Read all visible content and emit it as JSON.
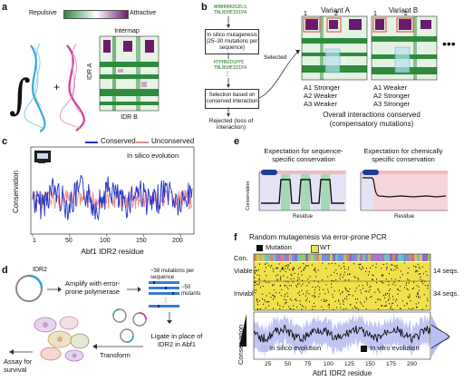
{
  "panel_a": {
    "letter": "a",
    "colorbar_left": "Repulsive",
    "colorbar_right": "Attractive",
    "map_title": "Intermap",
    "y_label": "IDR A",
    "x_label": "IDR B",
    "colors": {
      "repulsive": "#2e8b3e",
      "attractive": "#6a1b6e",
      "cyan": "#3aa9d6",
      "magenta": "#d63aa0"
    }
  },
  "panel_b": {
    "letter": "b",
    "seq_line1": "WHNHHRKDGELS",
    "seq_line2": "TNLNSHEIDIPA",
    "mutagenesis_box": "In silico mutagenesis (25–30 mutations per sequence)",
    "selection_box": "Selection based on conserved interaction",
    "rejected": "Rejected (loss of interaction)",
    "selected": "Selected",
    "mut_seq1": "HTPHNIDSPFE",
    "mut_seq2": "TNLNSHEIDIPA",
    "variant_a": "Variant A",
    "variant_b": "Variant B",
    "variant_a_lines": [
      "A1 Stronger",
      "A2 Weaker",
      "A3 Weaker"
    ],
    "variant_b_lines": [
      "A1 Weaker",
      "A2 Stronger",
      "A3 Stronger"
    ],
    "footer_line1": "Overall interactions conserved",
    "footer_line2": "(compensatory mutations)",
    "region_labels": [
      "1",
      "2",
      "3"
    ]
  },
  "panel_c": {
    "letter": "c",
    "legend_conserved": "Conserved",
    "legend_unconserved": "Unconserved",
    "annotation": "In silico evolution",
    "ylabel": "Conservation",
    "xlabel": "Abf1 IDR2 residue",
    "xticks": [
      "1",
      "50",
      "100",
      "150",
      "200"
    ],
    "colors": {
      "conserved": "#2233cc",
      "unconserved": "#e88b8b"
    }
  },
  "chart_data": {
    "type": "line",
    "xlabel": "Abf1 IDR2 residue",
    "ylabel": "Conservation",
    "xlim": [
      1,
      215
    ],
    "series": [
      {
        "name": "Conserved",
        "values_summary": "fluctuating 0.6–0.95"
      },
      {
        "name": "Unconserved",
        "values_summary": "fluctuating 0.6–0.85"
      }
    ]
  },
  "panel_d": {
    "letter": "d",
    "idr_label": "IDR2",
    "step1": "Amplify with error-prone polymerase",
    "mutations_note": "~38 mutations per sequence",
    "mutants_note": "~50 mutants",
    "step2": "Ligate in place of IDR2 in Abf1",
    "step3": "Transform",
    "step4": "Assay for survival"
  },
  "panel_e": {
    "letter": "e",
    "left_title": "Expectation for sequence-specific conservation",
    "right_title": "Expectation for chemically specific conservation",
    "ylabel": "Conservation",
    "xlabel": "Residue"
  },
  "panel_f": {
    "letter": "f",
    "title": "Random mutagenesis via error-prone PCR",
    "legend_mutation": "Mutation",
    "legend_wt": "WT",
    "row_con": "Con.",
    "row_viable": "Viable",
    "row_inviable": "Inviable",
    "viable_count": "14 seqs.",
    "inviable_count": "34 seqs.",
    "ylabel": "Conservation",
    "xlabel": "Abf1 IDR2 residue",
    "xticks": [
      "25",
      "50",
      "75",
      "100",
      "125",
      "150",
      "175",
      "200"
    ],
    "legend_silico": "In silico evolution",
    "legend_vitro": "In vitro evolution",
    "colors": {
      "wt": "#f2e04a",
      "mutation": "#111111",
      "silico": "#b9bff2"
    }
  }
}
